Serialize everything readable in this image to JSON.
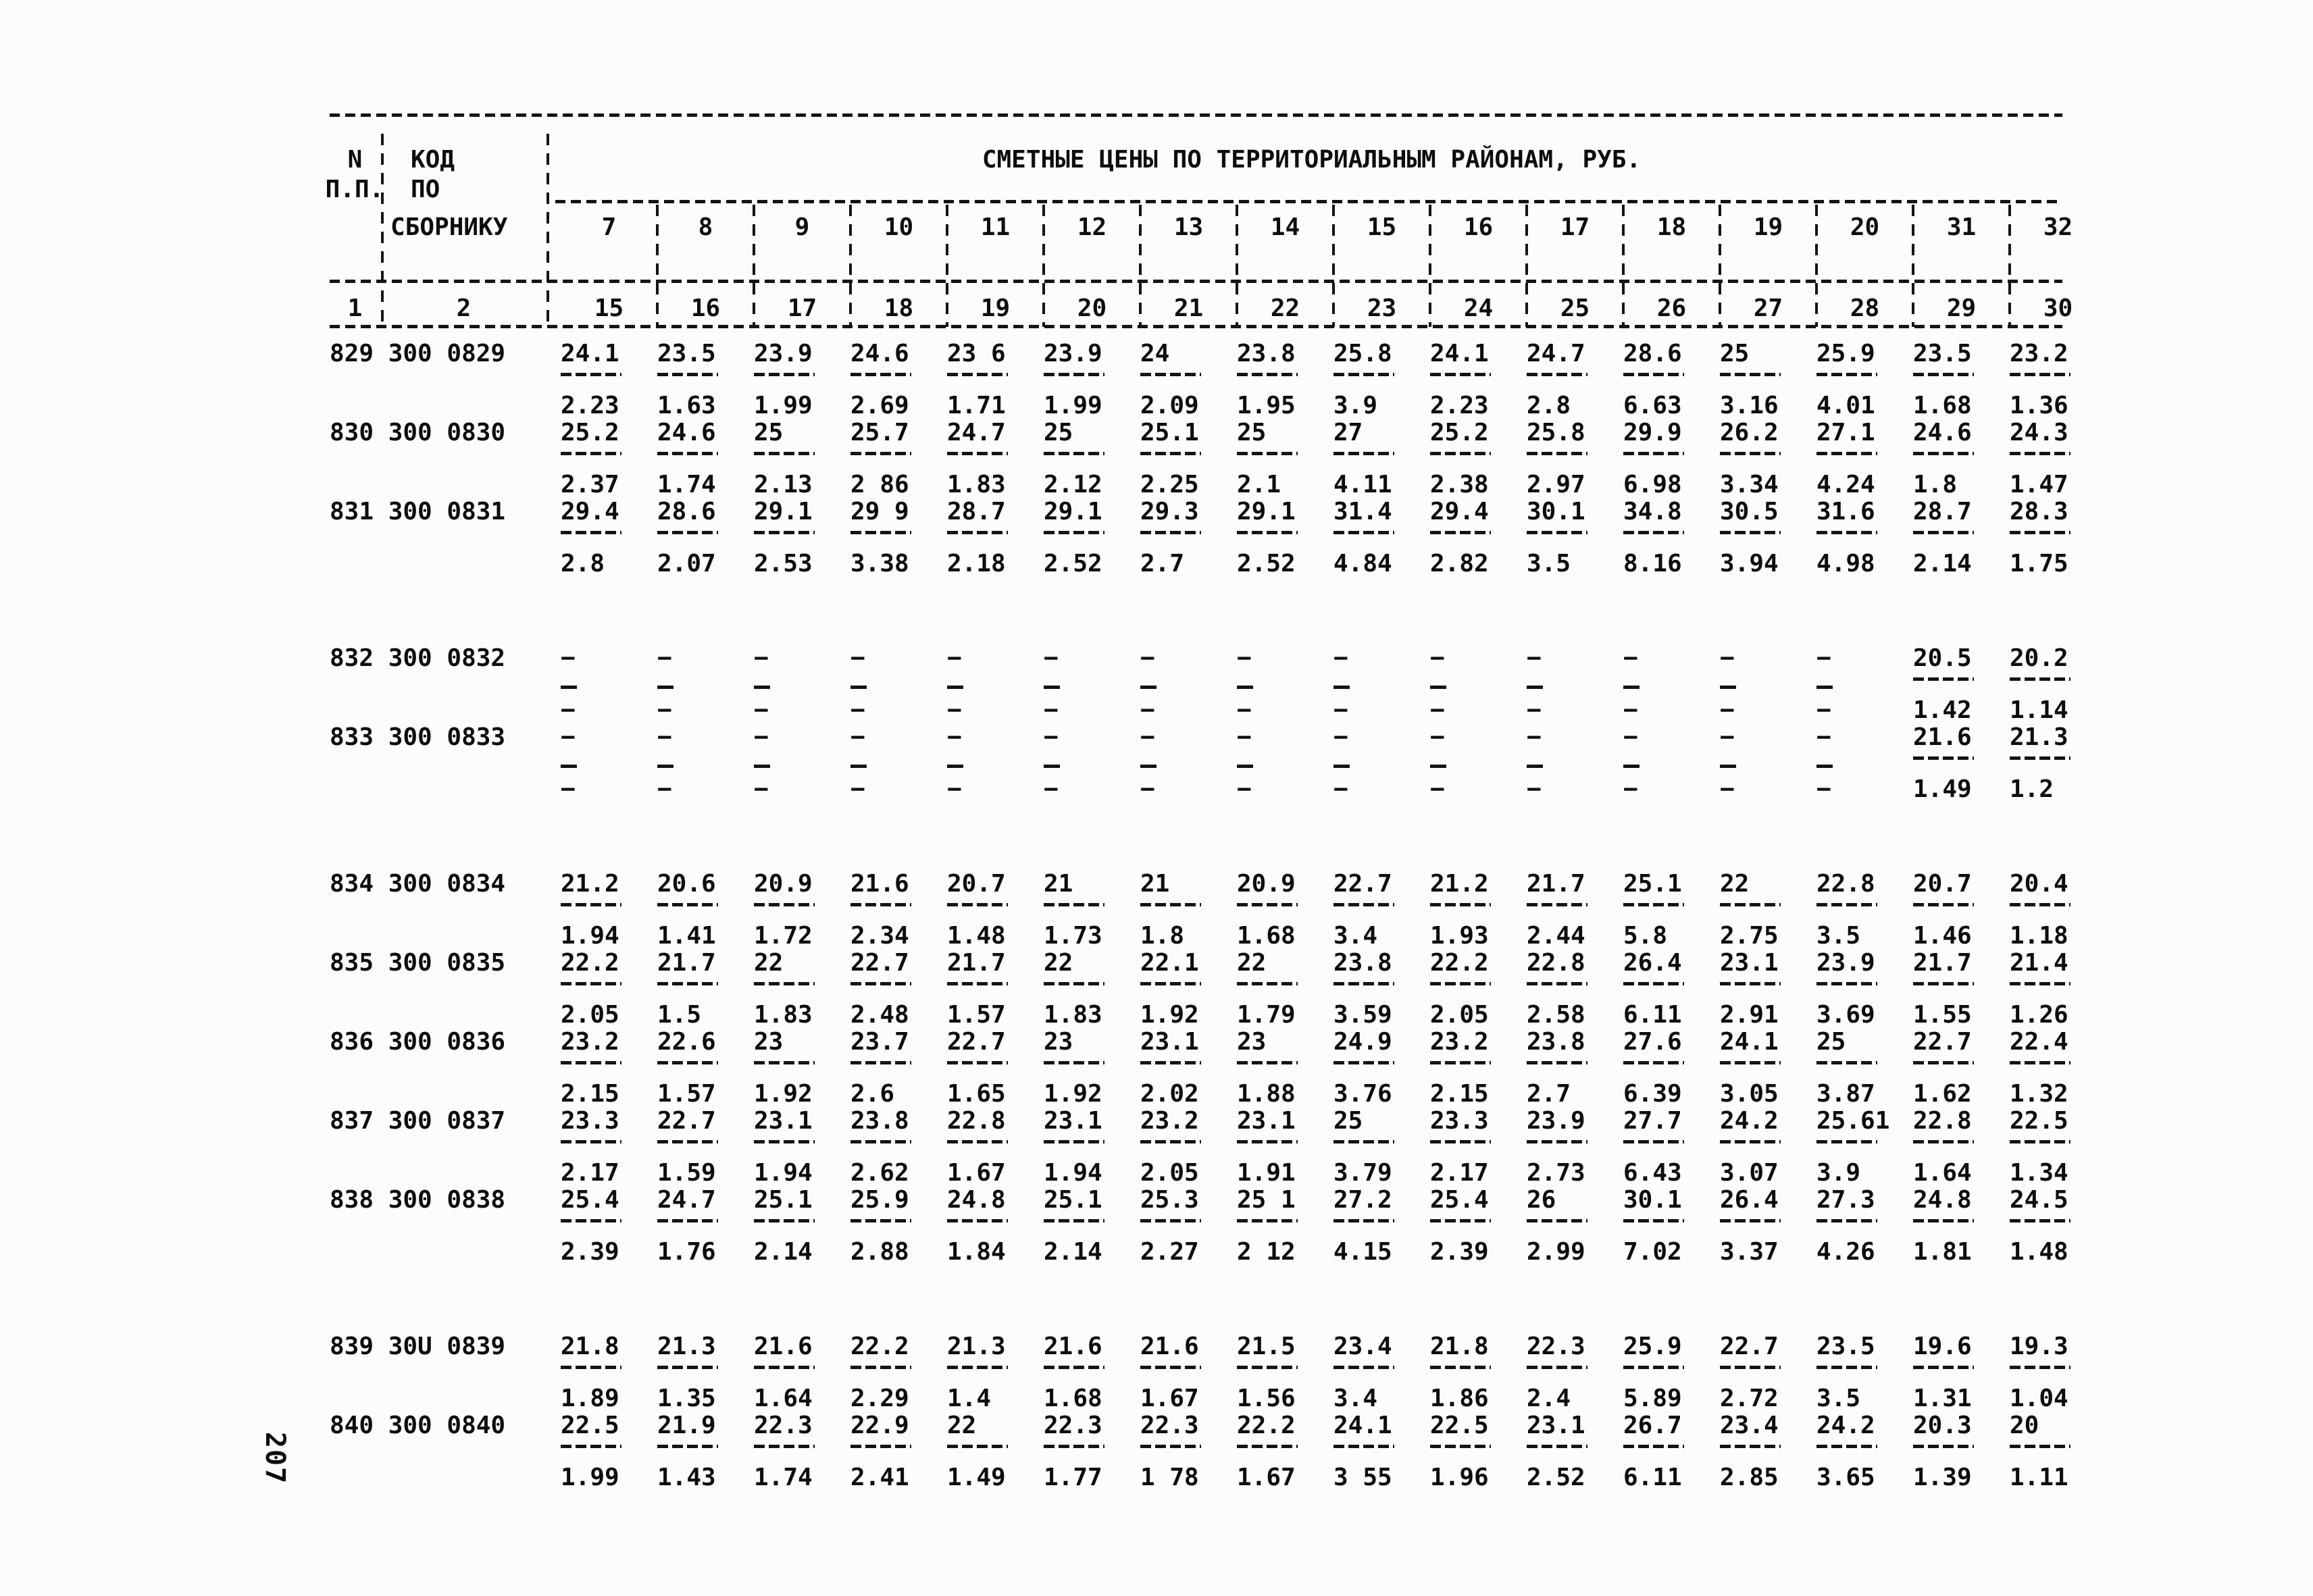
{
  "page_number": "207",
  "table": {
    "title": "СМЕТНЫЕ ЦЕНЫ ПО ТЕРРИТОРИАЛЬНЫМ РАЙОНАМ, РУБ.",
    "np_header": [
      "N",
      "П.П."
    ],
    "code_header": [
      "КОД",
      "ПО",
      "СБОРНИКУ"
    ],
    "index_np": "1",
    "index_code": "2",
    "region_row1": [
      "7",
      "8",
      "9",
      "10",
      "11",
      "12",
      "13",
      "14",
      "15",
      "16",
      "17",
      "18",
      "19",
      "20",
      "31",
      "32"
    ],
    "region_row2": [
      "15",
      "16",
      "17",
      "18",
      "19",
      "20",
      "21",
      "22",
      "23",
      "24",
      "25",
      "26",
      "27",
      "28",
      "29",
      "30"
    ],
    "rows": [
      {
        "np": "829",
        "code": "300 0829",
        "upper": [
          "24.1",
          "23.5",
          "23.9",
          "24.6",
          "23 6",
          "23.9",
          "24",
          "23.8",
          "25.8",
          "24.1",
          "24.7",
          "28.6",
          "25",
          "25.9",
          "23.5",
          "23.2"
        ],
        "lower": [
          "2.23",
          "1.63",
          "1.99",
          "2.69",
          "1.71",
          "1.99",
          "2.09",
          "1.95",
          "3.9",
          "2.23",
          "2.8",
          "6.63",
          "3.16",
          "4.01",
          "1.68",
          "1.36"
        ]
      },
      {
        "np": "830",
        "code": "300 0830",
        "upper": [
          "25.2",
          "24.6",
          "25",
          "25.7",
          "24.7",
          "25",
          "25.1",
          "25",
          "27",
          "25.2",
          "25.8",
          "29.9",
          "26.2",
          "27.1",
          "24.6",
          "24.3"
        ],
        "lower": [
          "2.37",
          "1.74",
          "2.13",
          "2 86",
          "1.83",
          "2.12",
          "2.25",
          "2.1",
          "4.11",
          "2.38",
          "2.97",
          "6.98",
          "3.34",
          "4.24",
          "1.8",
          "1.47"
        ]
      },
      {
        "np": "831",
        "code": "300 0831",
        "upper": [
          "29.4",
          "28.6",
          "29.1",
          "29 9",
          "28.7",
          "29.1",
          "29.3",
          "29.1",
          "31.4",
          "29.4",
          "30.1",
          "34.8",
          "30.5",
          "31.6",
          "28.7",
          "28.3"
        ],
        "lower": [
          "2.8",
          "2.07",
          "2.53",
          "3.38",
          "2.18",
          "2.52",
          "2.7",
          "2.52",
          "4.84",
          "2.82",
          "3.5",
          "8.16",
          "3.94",
          "4.98",
          "2.14",
          "1.75"
        ]
      },
      {
        "np": "832",
        "code": "300 0832",
        "gap": true,
        "upper": [
          "-",
          "-",
          "-",
          "-",
          "-",
          "-",
          "-",
          "-",
          "-",
          "-",
          "-",
          "-",
          "-",
          "-",
          "20.5",
          "20.2"
        ],
        "lower": [
          "-",
          "-",
          "-",
          "-",
          "-",
          "-",
          "-",
          "-",
          "-",
          "-",
          "-",
          "-",
          "-",
          "-",
          "1.42",
          "1.14"
        ]
      },
      {
        "np": "833",
        "code": "300 0833",
        "upper": [
          "-",
          "-",
          "-",
          "-",
          "-",
          "-",
          "-",
          "-",
          "-",
          "-",
          "-",
          "-",
          "-",
          "-",
          "21.6",
          "21.3"
        ],
        "lower": [
          "-",
          "-",
          "-",
          "-",
          "-",
          "-",
          "-",
          "-",
          "-",
          "-",
          "-",
          "-",
          "-",
          "-",
          "1.49",
          "1.2"
        ]
      },
      {
        "np": "834",
        "code": "300 0834",
        "gap": true,
        "upper": [
          "21.2",
          "20.6",
          "20.9",
          "21.6",
          "20.7",
          "21",
          "21",
          "20.9",
          "22.7",
          "21.2",
          "21.7",
          "25.1",
          "22",
          "22.8",
          "20.7",
          "20.4"
        ],
        "lower": [
          "1.94",
          "1.41",
          "1.72",
          "2.34",
          "1.48",
          "1.73",
          "1.8",
          "1.68",
          "3.4",
          "1.93",
          "2.44",
          "5.8",
          "2.75",
          "3.5",
          "1.46",
          "1.18"
        ]
      },
      {
        "np": "835",
        "code": "300 0835",
        "upper": [
          "22.2",
          "21.7",
          "22",
          "22.7",
          "21.7",
          "22",
          "22.1",
          "22",
          "23.8",
          "22.2",
          "22.8",
          "26.4",
          "23.1",
          "23.9",
          "21.7",
          "21.4"
        ],
        "lower": [
          "2.05",
          "1.5",
          "1.83",
          "2.48",
          "1.57",
          "1.83",
          "1.92",
          "1.79",
          "3.59",
          "2.05",
          "2.58",
          "6.11",
          "2.91",
          "3.69",
          "1.55",
          "1.26"
        ]
      },
      {
        "np": "836",
        "code": "300 0836",
        "upper": [
          "23.2",
          "22.6",
          "23",
          "23.7",
          "22.7",
          "23",
          "23.1",
          "23",
          "24.9",
          "23.2",
          "23.8",
          "27.6",
          "24.1",
          "25",
          "22.7",
          "22.4"
        ],
        "lower": [
          "2.15",
          "1.57",
          "1.92",
          "2.6",
          "1.65",
          "1.92",
          "2.02",
          "1.88",
          "3.76",
          "2.15",
          "2.7",
          "6.39",
          "3.05",
          "3.87",
          "1.62",
          "1.32"
        ]
      },
      {
        "np": "837",
        "code": "300 0837",
        "upper": [
          "23.3",
          "22.7",
          "23.1",
          "23.8",
          "22.8",
          "23.1",
          "23.2",
          "23.1",
          "25",
          "23.3",
          "23.9",
          "27.7",
          "24.2",
          "25.61",
          "22.8",
          "22.5"
        ],
        "lower": [
          "2.17",
          "1.59",
          "1.94",
          "2.62",
          "1.67",
          "1.94",
          "2.05",
          "1.91",
          "3.79",
          "2.17",
          "2.73",
          "6.43",
          "3.07",
          "3.9",
          "1.64",
          "1.34"
        ]
      },
      {
        "np": "838",
        "code": "300 0838",
        "upper": [
          "25.4",
          "24.7",
          "25.1",
          "25.9",
          "24.8",
          "25.1",
          "25.3",
          "25 1",
          "27.2",
          "25.4",
          "26",
          "30.1",
          "26.4",
          "27.3",
          "24.8",
          "24.5"
        ],
        "lower": [
          "2.39",
          "1.76",
          "2.14",
          "2.88",
          "1.84",
          "2.14",
          "2.27",
          "2 12",
          "4.15",
          "2.39",
          "2.99",
          "7.02",
          "3.37",
          "4.26",
          "1.81",
          "1.48"
        ]
      },
      {
        "np": "839",
        "code": "30U 0839",
        "gap": true,
        "upper": [
          "21.8",
          "21.3",
          "21.6",
          "22.2",
          "21.3",
          "21.6",
          "21.6",
          "21.5",
          "23.4",
          "21.8",
          "22.3",
          "25.9",
          "22.7",
          "23.5",
          "19.6",
          "19.3"
        ],
        "lower": [
          "1.89",
          "1.35",
          "1.64",
          "2.29",
          "1.4",
          "1.68",
          "1.67",
          "1.56",
          "3.4",
          "1.86",
          "2.4",
          "5.89",
          "2.72",
          "3.5",
          "1.31",
          "1.04"
        ]
      },
      {
        "np": "840",
        "code": "300 0840",
        "upper": [
          "22.5",
          "21.9",
          "22.3",
          "22.9",
          "22",
          "22.3",
          "22.3",
          "22.2",
          "24.1",
          "22.5",
          "23.1",
          "26.7",
          "23.4",
          "24.2",
          "20.3",
          "20"
        ],
        "lower": [
          "1.99",
          "1.43",
          "1.74",
          "2.41",
          "1.49",
          "1.77",
          "1 78",
          "1.67",
          "3 55",
          "1.96",
          "2.52",
          "6.11",
          "2.85",
          "3.65",
          "1.39",
          "1.11"
        ]
      }
    ]
  }
}
